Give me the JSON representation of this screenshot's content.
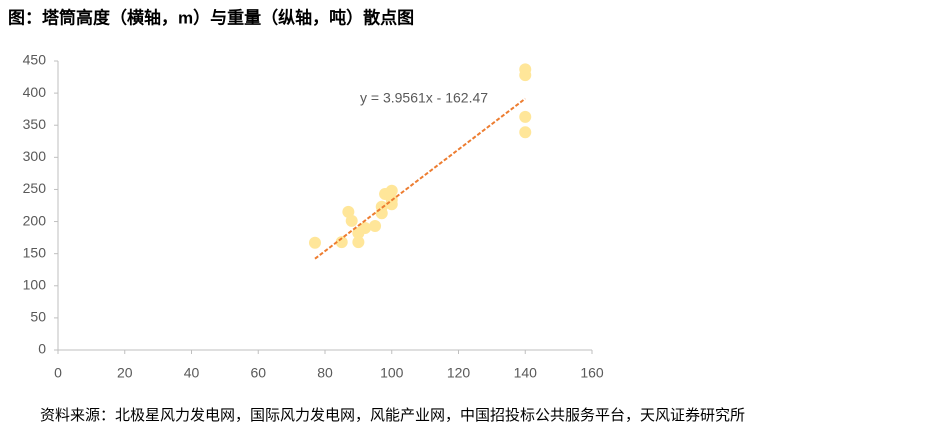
{
  "chart_data": {
    "type": "scatter",
    "title": "图：塔筒高度（横轴，m）与重量（纵轴，吨）散点图",
    "source": "资料来源：北极星风力发电网，国际风力发电网，风能产业网，中国招投标公共服务平台，天风证券研究所",
    "x": [
      77,
      85,
      87,
      88,
      90,
      90,
      92,
      95,
      97,
      97,
      98,
      100,
      100,
      100,
      140,
      140,
      140,
      140
    ],
    "values": [
      167,
      168,
      215,
      201,
      182,
      168,
      190,
      193,
      213,
      223,
      243,
      248,
      234,
      227,
      437,
      428,
      363,
      339
    ],
    "color": "#ffe699",
    "trendline": {
      "label": "y = 3.9561x - 162.47",
      "slope": 3.9561,
      "intercept": -162.47,
      "color": "#ed7d31"
    },
    "xlim": [
      0,
      160
    ],
    "xticks": [
      0,
      20,
      40,
      60,
      80,
      100,
      120,
      140,
      160
    ],
    "ylim": [
      0,
      450
    ],
    "yticks": [
      0,
      50,
      100,
      150,
      200,
      250,
      300,
      350,
      400,
      450
    ],
    "grid": false
  }
}
